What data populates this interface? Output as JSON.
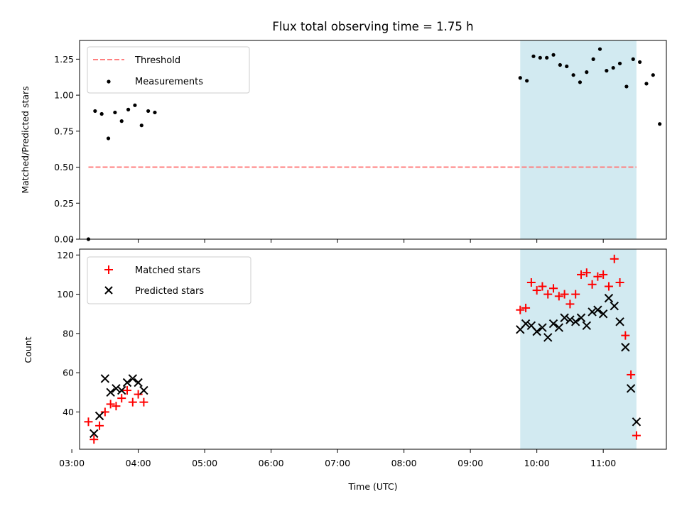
{
  "chart_data": [
    {
      "type": "scatter",
      "title": "Flux total observing time = 1.75 h",
      "xlabel": "",
      "ylabel": "Matched/Predicted stars",
      "xlim": [
        "03:07",
        "11:57"
      ],
      "ylim": [
        0,
        1.38
      ],
      "yticks": [
        0.0,
        0.25,
        0.5,
        0.75,
        1.0,
        1.25
      ],
      "ytick_labels": [
        "0.00",
        "0.25",
        "0.50",
        "0.75",
        "1.00",
        "1.25"
      ],
      "shaded_region": {
        "x": [
          "09:45",
          "11:30"
        ],
        "color": "#add8e6"
      },
      "threshold": {
        "name": "Threshold",
        "y": 0.5,
        "x": [
          "03:15",
          "11:30"
        ],
        "color": "#ff7f7f",
        "style": "dashed"
      },
      "series": [
        {
          "name": "Measurements",
          "marker": "dot",
          "color": "#000000",
          "points": [
            [
              "03:15",
              0.0
            ],
            [
              "03:21",
              0.89
            ],
            [
              "03:27",
              0.87
            ],
            [
              "03:33",
              0.7
            ],
            [
              "03:39",
              0.88
            ],
            [
              "03:45",
              0.82
            ],
            [
              "03:51",
              0.9
            ],
            [
              "03:57",
              0.93
            ],
            [
              "04:03",
              0.79
            ],
            [
              "04:09",
              0.89
            ],
            [
              "04:15",
              0.88
            ],
            [
              "09:45",
              1.12
            ],
            [
              "09:51",
              1.1
            ],
            [
              "09:57",
              1.27
            ],
            [
              "10:03",
              1.26
            ],
            [
              "10:09",
              1.26
            ],
            [
              "10:15",
              1.28
            ],
            [
              "10:21",
              1.21
            ],
            [
              "10:27",
              1.2
            ],
            [
              "10:33",
              1.14
            ],
            [
              "10:39",
              1.09
            ],
            [
              "10:45",
              1.16
            ],
            [
              "10:51",
              1.25
            ],
            [
              "10:57",
              1.32
            ],
            [
              "11:03",
              1.17
            ],
            [
              "11:09",
              1.19
            ],
            [
              "11:15",
              1.22
            ],
            [
              "11:21",
              1.06
            ],
            [
              "11:27",
              1.25
            ],
            [
              "11:33",
              1.23
            ],
            [
              "11:39",
              1.08
            ],
            [
              "11:45",
              1.14
            ],
            [
              "11:51",
              0.8
            ]
          ]
        }
      ],
      "legend": {
        "placement": "top-left",
        "entries": [
          "Threshold",
          "Measurements"
        ]
      }
    },
    {
      "type": "scatter",
      "title": "",
      "xlabel": "Time (UTC)",
      "ylabel": "Count",
      "xlim": [
        "03:07",
        "11:57"
      ],
      "ylim": [
        21,
        123
      ],
      "xticks": [
        "03:00",
        "04:00",
        "05:00",
        "06:00",
        "07:00",
        "08:00",
        "09:00",
        "10:00",
        "11:00"
      ],
      "yticks": [
        40,
        60,
        80,
        100,
        120
      ],
      "ytick_labels": [
        "40",
        "60",
        "80",
        "100",
        "120"
      ],
      "shaded_region": {
        "x": [
          "09:45",
          "11:30"
        ],
        "color": "#add8e6"
      },
      "series": [
        {
          "name": "Matched stars",
          "marker": "plus",
          "color": "#ff0000",
          "points": [
            [
              "03:15",
              35
            ],
            [
              "03:20",
              26
            ],
            [
              "03:25",
              33
            ],
            [
              "03:30",
              40
            ],
            [
              "03:35",
              44
            ],
            [
              "03:40",
              43
            ],
            [
              "03:45",
              47
            ],
            [
              "03:50",
              51
            ],
            [
              "03:55",
              45
            ],
            [
              "04:00",
              49
            ],
            [
              "04:05",
              45
            ],
            [
              "09:45",
              92
            ],
            [
              "09:50",
              93
            ],
            [
              "09:55",
              106
            ],
            [
              "10:00",
              102
            ],
            [
              "10:05",
              104
            ],
            [
              "10:10",
              100
            ],
            [
              "10:15",
              103
            ],
            [
              "10:20",
              99
            ],
            [
              "10:25",
              100
            ],
            [
              "10:30",
              95
            ],
            [
              "10:35",
              100
            ],
            [
              "10:40",
              110
            ],
            [
              "10:45",
              111
            ],
            [
              "10:50",
              105
            ],
            [
              "10:55",
              109
            ],
            [
              "11:00",
              110
            ],
            [
              "11:05",
              104
            ],
            [
              "11:10",
              118
            ],
            [
              "11:15",
              106
            ],
            [
              "11:20",
              79
            ],
            [
              "11:25",
              59
            ],
            [
              "11:30",
              28
            ]
          ]
        },
        {
          "name": "Predicted stars",
          "marker": "x",
          "color": "#000000",
          "points": [
            [
              "03:20",
              29
            ],
            [
              "03:25",
              38
            ],
            [
              "03:30",
              57
            ],
            [
              "03:35",
              50
            ],
            [
              "03:40",
              52
            ],
            [
              "03:45",
              51
            ],
            [
              "03:50",
              55
            ],
            [
              "03:55",
              57
            ],
            [
              "04:00",
              55
            ],
            [
              "04:05",
              51
            ],
            [
              "09:45",
              82
            ],
            [
              "09:50",
              85
            ],
            [
              "09:55",
              84
            ],
            [
              "10:00",
              81
            ],
            [
              "10:05",
              83
            ],
            [
              "10:10",
              78
            ],
            [
              "10:15",
              85
            ],
            [
              "10:20",
              83
            ],
            [
              "10:25",
              88
            ],
            [
              "10:30",
              87
            ],
            [
              "10:35",
              86
            ],
            [
              "10:40",
              88
            ],
            [
              "10:45",
              84
            ],
            [
              "10:50",
              91
            ],
            [
              "10:55",
              92
            ],
            [
              "11:00",
              90
            ],
            [
              "11:05",
              98
            ],
            [
              "11:10",
              94
            ],
            [
              "11:15",
              86
            ],
            [
              "11:20",
              73
            ],
            [
              "11:25",
              52
            ],
            [
              "11:30",
              35
            ]
          ]
        }
      ],
      "legend": {
        "placement": "top-left",
        "entries": [
          "Matched stars",
          "Predicted stars"
        ]
      }
    }
  ]
}
